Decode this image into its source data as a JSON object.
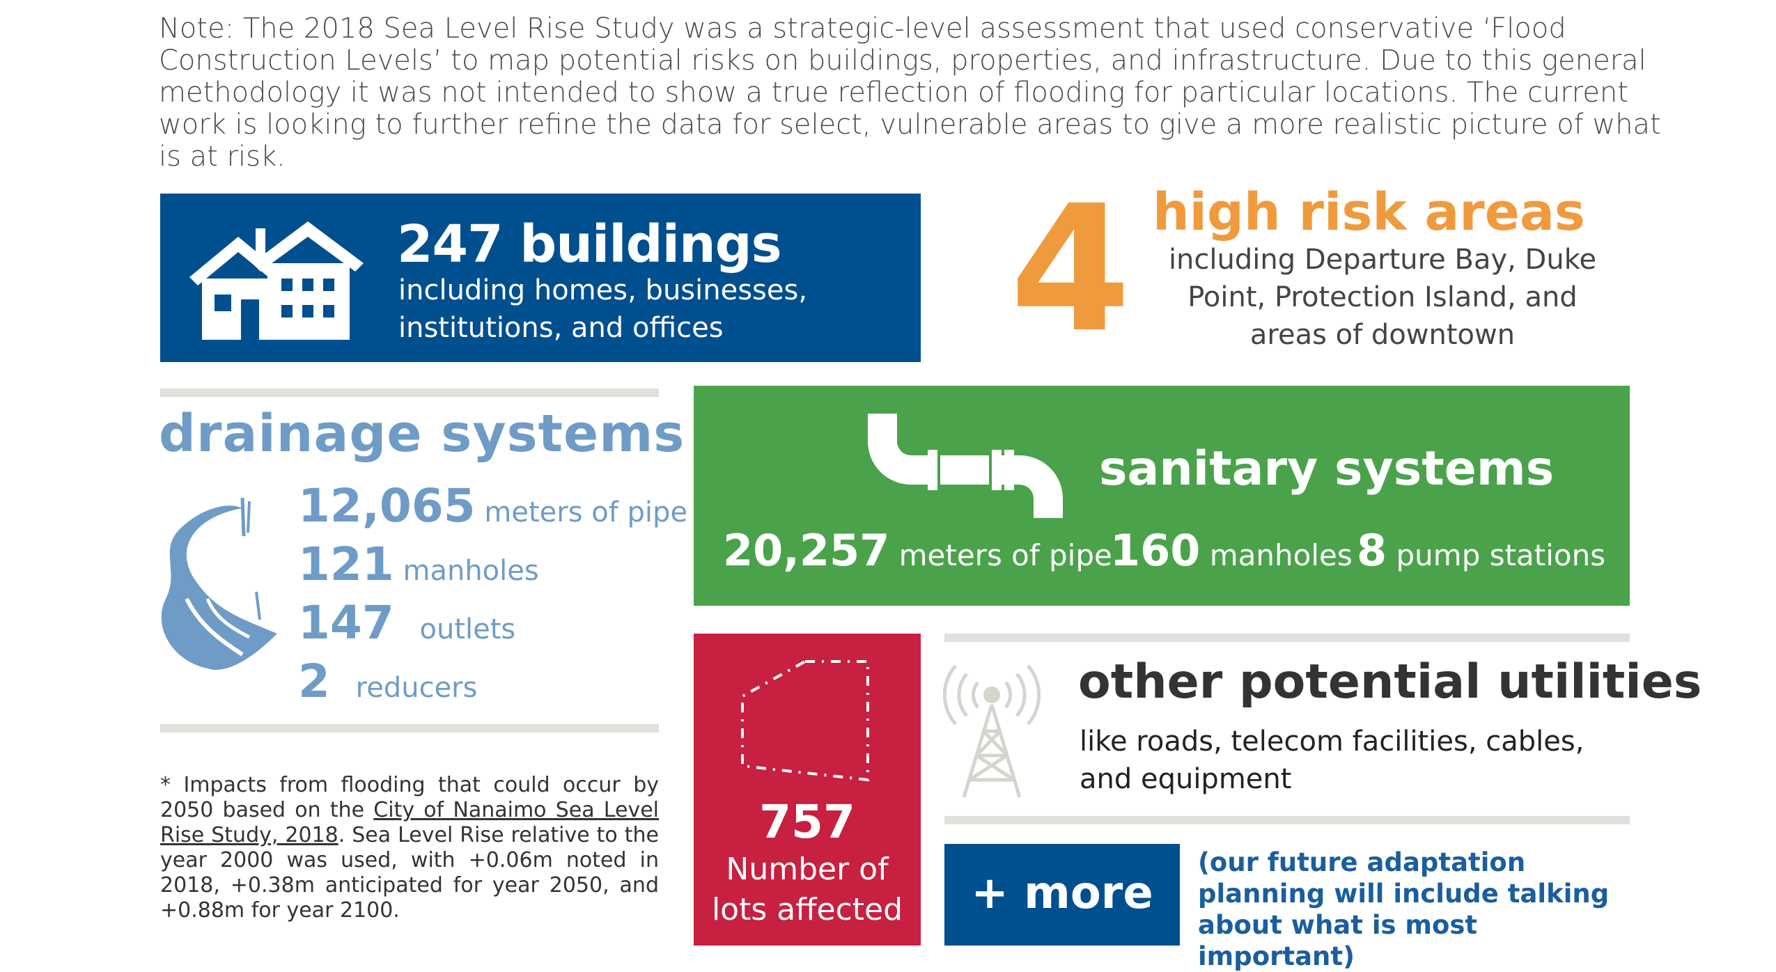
{
  "note": "Note: The 2018 Sea Level Rise Study was a strategic-level assessment that used conservative ‘Flood Construction Levels’ to map potential risks on buildings, properties, and infrastructure. Due to this general methodology it was not intended to show a true reflection of flooding for particular locations. The current work is looking to further refine the data for select, vulnerable areas to give a more realistic picture of what is at risk.",
  "buildings": {
    "title": "247 buildings",
    "desc": "including homes, businesses, institutions, and offices",
    "icon": "houses-icon"
  },
  "high_risk": {
    "number": "4",
    "title": "high risk areas",
    "desc": "including Departure Bay, Duke Point, Protection Island, and areas of downtown"
  },
  "drainage": {
    "title": "drainage systems",
    "icon": "river-icon",
    "rows": [
      {
        "num": "12,065",
        "label": "meters of pipe"
      },
      {
        "num": "121",
        "label": "manholes"
      },
      {
        "num": "147",
        "label": "outlets"
      },
      {
        "num": "2",
        "label": "reducers"
      }
    ]
  },
  "sanitary": {
    "title": "sanitary systems",
    "icon": "pipe-icon",
    "stats": [
      {
        "num": "20,257",
        "label": "meters of pipe"
      },
      {
        "num": "160",
        "label": "manholes"
      },
      {
        "num": "8",
        "label": "pump stations"
      }
    ]
  },
  "lots": {
    "num": "757",
    "label": "Number of lots affected",
    "icon": "lot-boundary-icon"
  },
  "utilities": {
    "title": "other potential utilities",
    "desc": "like roads, telecom facilities, cables, and equipment",
    "icon": "telecom-tower-icon"
  },
  "more": {
    "label": "+ more",
    "note": "(our future adaptation planning will include talking about what is most important)"
  },
  "footnote": {
    "pre": "* Impacts from flooding that could occur by 2050 based on the ",
    "link": "City of Nanaimo Sea Level Rise Study, 2018",
    "post": ". Sea Level Rise relative to the year 2000 was used, with +0.06m noted in 2018, +0.38m anticipated for year 2050, and  +0.88m for year 2100."
  },
  "colors": {
    "blue": "#004f8f",
    "orange": "#f09a3e",
    "light_blue": "#6f9cc6",
    "green": "#4aa34a",
    "red": "#c72041"
  }
}
